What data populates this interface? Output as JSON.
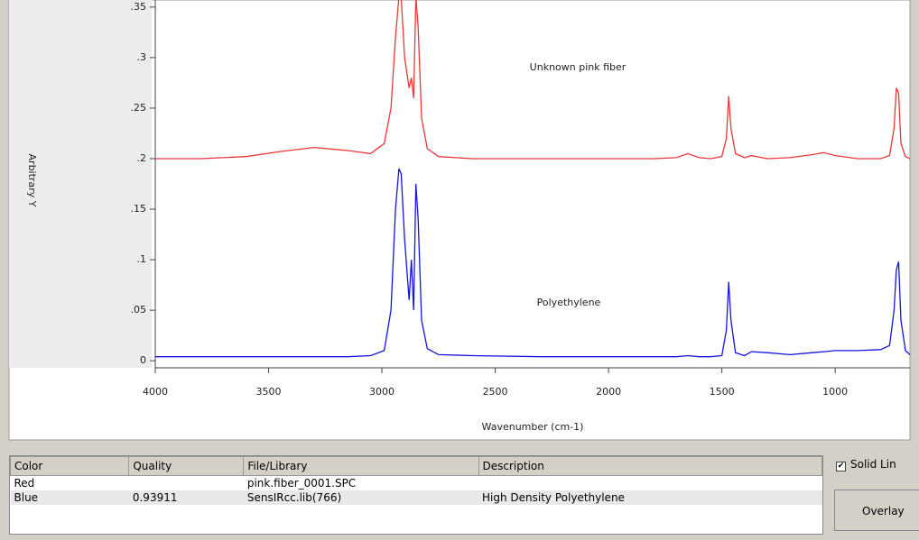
{
  "chart_data": {
    "type": "line",
    "x_label": "Wavenumber (cm-1)",
    "y_label": "Arbitrary Y",
    "x": [
      4000,
      3800,
      3600,
      3450,
      3300,
      3150,
      3050,
      2990,
      2960,
      2940,
      2925,
      2915,
      2900,
      2880,
      2870,
      2860,
      2850,
      2840,
      2825,
      2800,
      2750,
      2600,
      2300,
      2000,
      1800,
      1700,
      1650,
      1600,
      1550,
      1500,
      1480,
      1470,
      1460,
      1440,
      1400,
      1370,
      1300,
      1200,
      1100,
      1050,
      1000,
      900,
      800,
      760,
      740,
      730,
      720,
      710,
      690,
      670
    ],
    "series": [
      {
        "name": "Unknown pink fiber",
        "color": "#e83838",
        "values": [
          0.2,
          0.2,
          0.202,
          0.207,
          0.211,
          0.208,
          0.205,
          0.215,
          0.25,
          0.32,
          0.36,
          0.36,
          0.3,
          0.27,
          0.28,
          0.26,
          0.36,
          0.33,
          0.24,
          0.21,
          0.202,
          0.2,
          0.2,
          0.2,
          0.2,
          0.201,
          0.205,
          0.201,
          0.2,
          0.202,
          0.22,
          0.262,
          0.23,
          0.205,
          0.201,
          0.203,
          0.2,
          0.201,
          0.204,
          0.206,
          0.203,
          0.2,
          0.2,
          0.203,
          0.23,
          0.27,
          0.265,
          0.215,
          0.202,
          0.2
        ]
      },
      {
        "name": "Polyethylene",
        "color": "#1414e0",
        "values": [
          0.004,
          0.004,
          0.004,
          0.004,
          0.004,
          0.004,
          0.005,
          0.01,
          0.05,
          0.15,
          0.19,
          0.185,
          0.12,
          0.06,
          0.1,
          0.05,
          0.175,
          0.14,
          0.04,
          0.012,
          0.006,
          0.005,
          0.004,
          0.004,
          0.004,
          0.004,
          0.005,
          0.004,
          0.004,
          0.005,
          0.03,
          0.078,
          0.04,
          0.008,
          0.005,
          0.009,
          0.008,
          0.006,
          0.008,
          0.009,
          0.01,
          0.01,
          0.011,
          0.015,
          0.05,
          0.09,
          0.098,
          0.04,
          0.01,
          0.006
        ]
      }
    ],
    "xlim": [
      4000,
      670
    ],
    "xticks": [
      4000,
      3500,
      3000,
      2500,
      2000,
      1500,
      1000
    ],
    "ylim": [
      -0.007,
      0.357
    ],
    "yticks": [
      {
        "value": 0,
        "label": "0"
      },
      {
        "value": 0.05,
        "label": ".05"
      },
      {
        "value": 0.1,
        "label": ".1"
      },
      {
        "value": 0.15,
        "label": ".15"
      },
      {
        "value": 0.2,
        "label": ".2"
      },
      {
        "value": 0.25,
        "label": ".25"
      },
      {
        "value": 0.3,
        "label": ".3"
      },
      {
        "value": 0.35,
        "label": ".35"
      }
    ]
  },
  "table": {
    "columns": [
      "Color",
      "Quality",
      "File/Library",
      "Description"
    ],
    "rows": [
      [
        "Red",
        null,
        "pink.fiber_0001.SPC",
        null
      ],
      [
        "Blue",
        "0.93911",
        "SensIRcc.lib(766)",
        "High Density Polyethylene"
      ]
    ]
  },
  "controls": {
    "checkbox": "Solid Lin",
    "button": "Overlay"
  }
}
